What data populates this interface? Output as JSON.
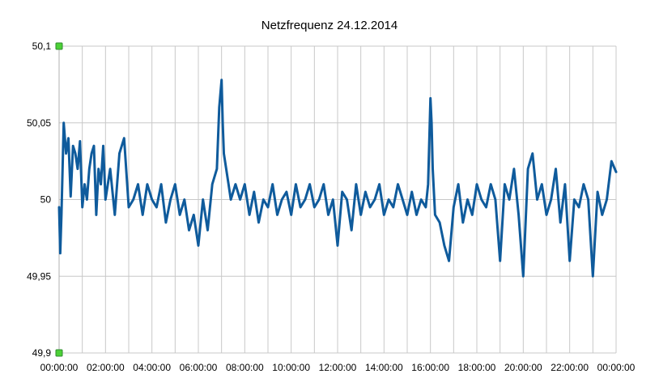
{
  "chart_data": {
    "type": "line",
    "title": "Netzfrequenz 24.12.2014",
    "xlabel": "",
    "ylabel": "",
    "ylim": [
      49.9,
      50.1
    ],
    "xlim_hours": [
      0,
      24
    ],
    "grid": true,
    "legend": "none",
    "y_ticks": [
      {
        "value": 50.1,
        "label": "50,1"
      },
      {
        "value": 50.05,
        "label": "50,05"
      },
      {
        "value": 50.0,
        "label": "50"
      },
      {
        "value": 49.95,
        "label": "49,95"
      },
      {
        "value": 49.9,
        "label": "49,9"
      }
    ],
    "x_tick_labels": [
      "00:00:00",
      "02:00:00",
      "04:00:00",
      "06:00:00",
      "08:00:00",
      "10:00:00",
      "12:00:00",
      "14:00:00",
      "16:00:00",
      "18:00:00",
      "20:00:00",
      "22:00:00",
      "00:00:00"
    ],
    "line_color": "#0f5b9c",
    "marker_color": "#4cd137",
    "series": [
      {
        "x_hours": [
          0,
          0.05,
          0.1,
          0.15,
          0.2,
          0.3,
          0.4,
          0.5,
          0.6,
          0.7,
          0.8,
          0.9,
          1.0,
          1.1,
          1.2,
          1.3,
          1.4,
          1.5,
          1.6,
          1.7,
          1.8,
          1.9,
          2.0,
          2.2,
          2.4,
          2.6,
          2.8,
          3.0,
          3.2,
          3.4,
          3.6,
          3.8,
          4.0,
          4.2,
          4.4,
          4.6,
          4.8,
          5.0,
          5.2,
          5.4,
          5.6,
          5.8,
          6.0,
          6.2,
          6.4,
          6.6,
          6.8,
          6.9,
          7.0,
          7.05,
          7.1,
          7.2,
          7.3,
          7.4,
          7.6,
          7.8,
          8.0,
          8.2,
          8.4,
          8.6,
          8.8,
          9.0,
          9.2,
          9.4,
          9.6,
          9.8,
          10.0,
          10.2,
          10.4,
          10.6,
          10.8,
          11.0,
          11.2,
          11.4,
          11.6,
          11.8,
          12.0,
          12.2,
          12.4,
          12.6,
          12.8,
          13.0,
          13.2,
          13.4,
          13.6,
          13.8,
          14.0,
          14.2,
          14.4,
          14.6,
          14.8,
          15.0,
          15.2,
          15.4,
          15.6,
          15.8,
          15.9,
          16.0,
          16.05,
          16.1,
          16.2,
          16.4,
          16.6,
          16.8,
          17.0,
          17.2,
          17.4,
          17.6,
          17.8,
          18.0,
          18.2,
          18.4,
          18.6,
          18.8,
          19.0,
          19.2,
          19.4,
          19.6,
          19.8,
          20.0,
          20.2,
          20.4,
          20.6,
          20.8,
          21.0,
          21.2,
          21.4,
          21.6,
          21.8,
          22.0,
          22.2,
          22.4,
          22.6,
          22.8,
          23.0,
          23.2,
          23.4,
          23.6,
          23.8,
          24.0
        ],
        "values": [
          49.995,
          49.965,
          49.99,
          50.02,
          50.05,
          50.03,
          50.04,
          50.002,
          50.035,
          50.03,
          50.02,
          50.038,
          49.995,
          50.01,
          50.0,
          50.02,
          50.03,
          50.035,
          49.99,
          50.02,
          50.01,
          50.035,
          50.0,
          50.02,
          49.99,
          50.03,
          50.04,
          49.995,
          50.0,
          50.01,
          49.99,
          50.01,
          50.0,
          49.995,
          50.01,
          49.985,
          50.0,
          50.01,
          49.99,
          50.0,
          49.98,
          49.99,
          49.97,
          50.0,
          49.98,
          50.01,
          50.02,
          50.06,
          50.078,
          50.05,
          50.03,
          50.02,
          50.01,
          50.0,
          50.01,
          50.0,
          50.01,
          49.99,
          50.005,
          49.985,
          50.0,
          49.995,
          50.01,
          49.99,
          50.0,
          50.005,
          49.99,
          50.01,
          49.995,
          50.0,
          50.01,
          49.995,
          50.0,
          50.01,
          49.99,
          50.0,
          49.97,
          50.005,
          50.0,
          49.98,
          50.01,
          49.99,
          50.005,
          49.995,
          50.0,
          50.01,
          49.99,
          50.0,
          49.995,
          50.01,
          50.0,
          49.99,
          50.005,
          49.99,
          50.0,
          49.995,
          50.01,
          50.066,
          50.05,
          50.02,
          49.99,
          49.985,
          49.97,
          49.96,
          49.995,
          50.01,
          49.985,
          50.0,
          49.99,
          50.01,
          50.0,
          49.995,
          50.01,
          50.0,
          49.96,
          50.01,
          50.0,
          50.02,
          49.99,
          49.95,
          50.02,
          50.03,
          50.0,
          50.01,
          49.99,
          50.0,
          50.02,
          49.985,
          50.01,
          49.96,
          50.0,
          49.995,
          50.01,
          50.0,
          49.95,
          50.005,
          49.99,
          50.0,
          50.025,
          50.018
        ]
      }
    ]
  }
}
